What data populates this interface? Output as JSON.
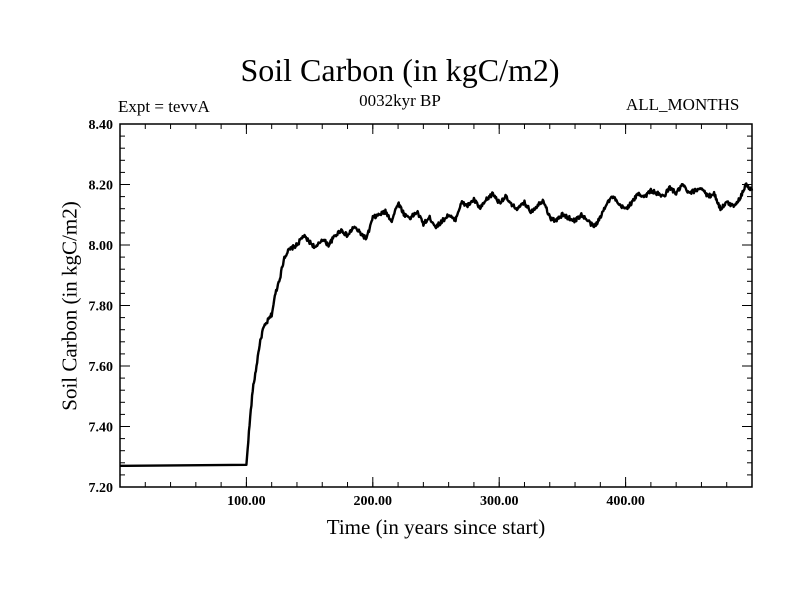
{
  "chart_data": {
    "type": "line",
    "title": "Soil Carbon (in kgC/m2)",
    "subtitle": "0032kyr BP",
    "left_label": "Expt = tevvA",
    "right_label": "ALL_MONTHS",
    "xlabel": "Time (in years since start)",
    "ylabel": "Soil Carbon (in kgC/m2)",
    "xlim": [
      0,
      500
    ],
    "ylim": [
      7.2,
      8.4
    ],
    "x_ticks": [
      100,
      200,
      300,
      400
    ],
    "x_tick_labels": [
      "100.00",
      "200.00",
      "300.00",
      "400.00"
    ],
    "y_ticks": [
      7.2,
      7.4,
      7.6,
      7.8,
      8.0,
      8.2,
      8.4
    ],
    "y_tick_labels": [
      "7.20",
      "7.40",
      "7.60",
      "7.80",
      "8.00",
      "8.20",
      "8.40"
    ],
    "grid": false,
    "series": [
      {
        "color": "#000000",
        "x": [
          0,
          100,
          101,
          103,
          105,
          108,
          110,
          113,
          117,
          120,
          123,
          127,
          130,
          133,
          136,
          140,
          145,
          150,
          155,
          160,
          165,
          170,
          175,
          180,
          185,
          190,
          195,
          200,
          205,
          210,
          215,
          220,
          225,
          230,
          235,
          240,
          245,
          250,
          255,
          260,
          265,
          270,
          275,
          280,
          285,
          290,
          295,
          300,
          305,
          310,
          315,
          320,
          325,
          330,
          335,
          340,
          345,
          350,
          355,
          360,
          365,
          370,
          375,
          380,
          385,
          390,
          395,
          400,
          405,
          410,
          415,
          420,
          425,
          430,
          435,
          440,
          445,
          450,
          455,
          460,
          465,
          470,
          475,
          480,
          485,
          490,
          495,
          500
        ],
        "y": [
          7.27,
          7.27,
          7.33,
          7.43,
          7.52,
          7.6,
          7.66,
          7.72,
          7.75,
          7.77,
          7.84,
          7.9,
          7.96,
          7.98,
          7.99,
          8.0,
          8.03,
          8.01,
          7.99,
          8.02,
          8.0,
          8.03,
          8.05,
          8.03,
          8.06,
          8.04,
          8.02,
          8.09,
          8.1,
          8.11,
          8.08,
          8.14,
          8.1,
          8.09,
          8.11,
          8.07,
          8.09,
          8.06,
          8.08,
          8.1,
          8.08,
          8.14,
          8.13,
          8.15,
          8.12,
          8.15,
          8.17,
          8.14,
          8.16,
          8.13,
          8.12,
          8.14,
          8.11,
          8.13,
          8.15,
          8.09,
          8.08,
          8.1,
          8.09,
          8.08,
          8.1,
          8.08,
          8.06,
          8.09,
          8.14,
          8.16,
          8.13,
          8.12,
          8.14,
          8.17,
          8.16,
          8.18,
          8.17,
          8.16,
          8.19,
          8.17,
          8.2,
          8.17,
          8.18,
          8.19,
          8.16,
          8.17,
          8.12,
          8.14,
          8.13,
          8.15,
          8.2,
          8.18
        ]
      }
    ]
  }
}
